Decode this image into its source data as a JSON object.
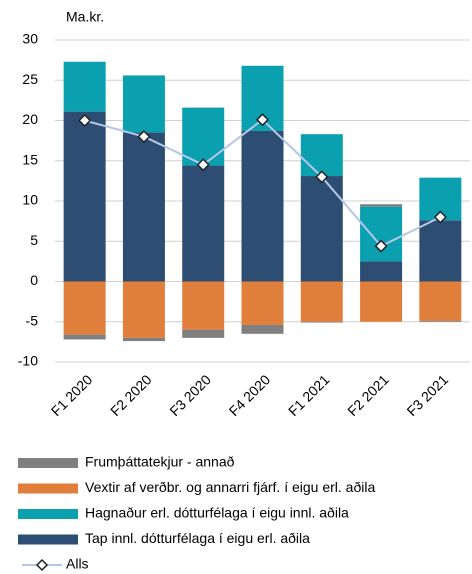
{
  "chart_data": {
    "type": "bar",
    "y_axis_label": "Ma.kr.",
    "categories": [
      "F1 2020",
      "F2 2020",
      "F3 2020",
      "F4 2020",
      "F1 2021",
      "F2 2021",
      "F3 2021"
    ],
    "series": [
      {
        "name": "Frumþáttatekjur - annað",
        "color": "#7f7f7f",
        "values": [
          -0.6,
          -0.4,
          -1.0,
          -1.1,
          -0.1,
          0.3,
          -0.1
        ]
      },
      {
        "name": "Vextir af verðbr. og annarri fjárf. í eigu erl. aðila",
        "color": "#e07f3c",
        "values": [
          -6.6,
          -7.0,
          -6.0,
          -5.4,
          -5.0,
          -5.0,
          -4.9
        ]
      },
      {
        "name": "Hagnaður  erl. dótturfélaga í eigu innl. aðila",
        "color": "#0aa0b0",
        "values": [
          6.2,
          7.1,
          7.2,
          8.1,
          5.2,
          6.8,
          5.3
        ]
      },
      {
        "name": "Tap innl. dótturfélaga í eigu erl. aðila",
        "color": "#2e4d73",
        "values": [
          21.1,
          18.5,
          14.4,
          18.7,
          13.1,
          2.5,
          7.6
        ]
      },
      {
        "name": "Alls",
        "type": "line",
        "color": "#b4c7e7",
        "values": [
          20.0,
          18.0,
          14.5,
          20.1,
          13.0,
          4.4,
          8.0
        ]
      }
    ],
    "ylim": [
      -10,
      30
    ],
    "yticks": [
      -10,
      -5,
      0,
      5,
      10,
      15,
      20,
      25,
      30
    ],
    "grid": true
  }
}
